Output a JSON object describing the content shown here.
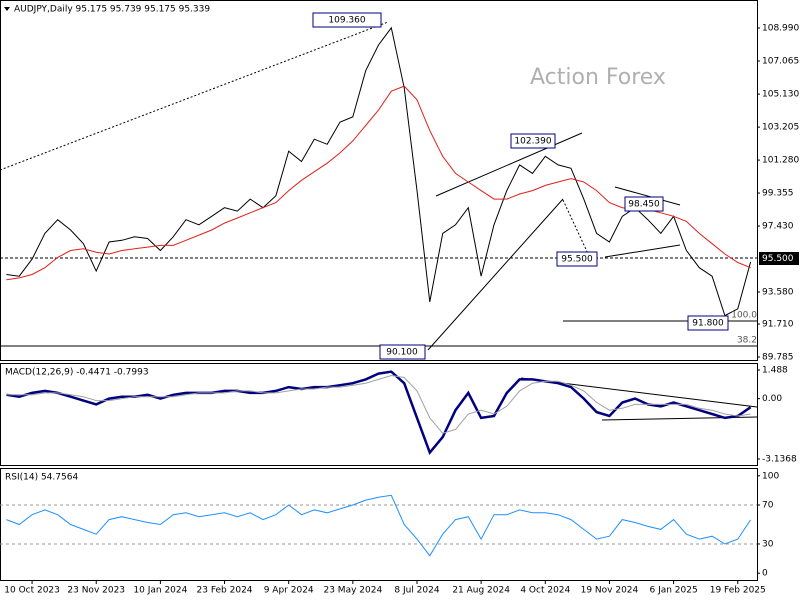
{
  "chart_data": [
    {
      "type": "line",
      "title": "AUDJPY,Daily  95.175 95.739 95.175 95.339",
      "watermark": "Action Forex",
      "price_label": "95.500",
      "categories": [
        null,
        null,
        "10 Oct 2023",
        null,
        null,
        null,
        null,
        "23 Nov 2023",
        null,
        null,
        null,
        null,
        "10 Jan 2024",
        null,
        null,
        null,
        null,
        "23 Feb 2024",
        null,
        null,
        null,
        null,
        "9 Apr 2024",
        null,
        null,
        null,
        null,
        "23 May 2024",
        null,
        null,
        null,
        null,
        "8 Jul 2024",
        null,
        null,
        null,
        null,
        "21 Aug 2024",
        null,
        null,
        null,
        null,
        "4 Oct 2024",
        null,
        null,
        null,
        null,
        "19 Nov 2024",
        null,
        null,
        null,
        null,
        "6 Jan 2025",
        null,
        null,
        null,
        null,
        "19 Feb 2025",
        null
      ],
      "series": [
        {
          "name": "AUDJPY",
          "color": "#000000",
          "values": [
            94.6,
            94.5,
            95.5,
            97.0,
            97.8,
            97.2,
            96.4,
            94.8,
            96.5,
            96.6,
            96.8,
            96.7,
            96.0,
            96.8,
            97.8,
            97.5,
            98.0,
            98.5,
            98.3,
            99.0,
            98.5,
            99.2,
            101.8,
            101.2,
            102.5,
            102.2,
            103.5,
            103.8,
            106.5,
            108.0,
            109.0,
            105.5,
            99.5,
            93.0,
            97.0,
            97.5,
            98.5,
            94.5,
            97.5,
            99.5,
            101.0,
            100.5,
            101.5,
            101.0,
            100.8,
            99.0,
            97.0,
            96.5,
            98.0,
            98.5,
            97.8,
            97.0,
            98.0,
            96.0,
            95.0,
            94.5,
            92.2,
            92.6,
            95.339
          ]
        },
        {
          "name": "MA",
          "color": "#e0201c",
          "values": [
            94.3,
            94.4,
            94.6,
            95.0,
            95.6,
            96.0,
            96.1,
            95.9,
            95.8,
            96.0,
            96.1,
            96.2,
            96.3,
            96.3,
            96.6,
            96.9,
            97.2,
            97.6,
            97.9,
            98.2,
            98.5,
            98.8,
            99.5,
            100.1,
            100.6,
            101.1,
            101.7,
            102.4,
            103.3,
            104.2,
            105.3,
            105.6,
            104.8,
            103.0,
            101.5,
            100.5,
            100.0,
            99.5,
            99.0,
            99.0,
            99.3,
            99.5,
            99.8,
            100.0,
            100.2,
            100.0,
            99.5,
            98.8,
            98.5,
            98.4,
            98.4,
            98.2,
            98.0,
            97.7,
            97.0,
            96.4,
            95.8,
            95.3,
            95.0
          ]
        }
      ],
      "ylim": [
        89.61,
        110.625
      ],
      "yticks": [
        {
          "value": 108.99,
          "label": "108.990"
        },
        {
          "value": 107.065,
          "label": "107.065"
        },
        {
          "value": 105.13,
          "label": "105.130"
        },
        {
          "value": 103.205,
          "label": "103.205"
        },
        {
          "value": 101.28,
          "label": "101.280"
        },
        {
          "value": 99.355,
          "label": "99.355"
        },
        {
          "value": 97.43,
          "label": "97.430"
        },
        {
          "value": 93.58,
          "label": "93.580"
        },
        {
          "value": 91.71,
          "label": "91.710"
        },
        {
          "value": 89.785,
          "label": "89.785"
        }
      ],
      "annotations": [
        "109.360",
        "102.390",
        "98.450",
        "95.500",
        "91.800",
        "90.100",
        "100.0",
        "38.2"
      ]
    },
    {
      "type": "line",
      "title": "MACD(12,26,9) -0.4471 -0.7993",
      "series": [
        {
          "name": "MACD",
          "color": "#000080",
          "values": [
            0.2,
            0.1,
            0.3,
            0.4,
            0.3,
            0.1,
            -0.1,
            -0.3,
            0.0,
            0.1,
            0.1,
            0.2,
            0.0,
            0.2,
            0.3,
            0.3,
            0.3,
            0.4,
            0.4,
            0.3,
            0.3,
            0.4,
            0.6,
            0.5,
            0.6,
            0.6,
            0.7,
            0.8,
            1.0,
            1.3,
            1.4,
            0.8,
            -1.0,
            -2.8,
            -2.0,
            -0.6,
            0.3,
            -1.0,
            -0.9,
            0.3,
            1.0,
            1.0,
            0.9,
            0.8,
            0.6,
            0.0,
            -0.7,
            -0.9,
            -0.2,
            0.0,
            -0.3,
            -0.4,
            -0.2,
            -0.4,
            -0.6,
            -0.8,
            -1.0,
            -0.9,
            -0.4471
          ]
        },
        {
          "name": "Signal",
          "color": "#a0a0a0",
          "values": [
            0.2,
            0.2,
            0.2,
            0.3,
            0.3,
            0.2,
            0.1,
            -0.1,
            -0.1,
            0.0,
            0.1,
            0.1,
            0.1,
            0.1,
            0.2,
            0.3,
            0.3,
            0.3,
            0.4,
            0.4,
            0.3,
            0.3,
            0.4,
            0.5,
            0.5,
            0.6,
            0.6,
            0.7,
            0.8,
            1.0,
            1.2,
            1.1,
            0.4,
            -1.0,
            -1.8,
            -1.6,
            -0.8,
            -0.6,
            -0.8,
            -0.4,
            0.4,
            0.8,
            0.9,
            0.9,
            0.7,
            0.4,
            -0.2,
            -0.6,
            -0.5,
            -0.3,
            -0.3,
            -0.3,
            -0.3,
            -0.3,
            -0.5,
            -0.6,
            -0.8,
            -0.9,
            -0.7993
          ]
        }
      ],
      "ylim": [
        -3.448,
        1.852
      ],
      "yticks": [
        1.488,
        {
          "value": 0,
          "label": "0.00"
        },
        -3.1368
      ]
    },
    {
      "type": "line",
      "title": "RSI(14) 54.7564",
      "series": [
        {
          "name": "RSI",
          "color": "#1e90ff",
          "values": [
            55,
            50,
            60,
            65,
            60,
            50,
            45,
            40,
            55,
            58,
            55,
            52,
            50,
            60,
            62,
            58,
            60,
            62,
            58,
            62,
            55,
            60,
            70,
            60,
            65,
            62,
            66,
            70,
            75,
            78,
            80,
            50,
            35,
            18,
            40,
            55,
            58,
            35,
            60,
            60,
            65,
            62,
            62,
            60,
            55,
            45,
            35,
            38,
            55,
            52,
            48,
            45,
            55,
            40,
            35,
            38,
            30,
            35,
            54.7564
          ]
        }
      ],
      "ylim": [
        -7,
        108
      ],
      "yticks": [
        100,
        70,
        30,
        0
      ],
      "levels": [
        70,
        30
      ]
    }
  ]
}
